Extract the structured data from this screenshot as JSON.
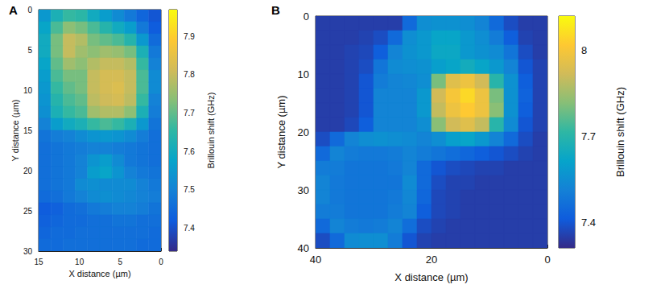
{
  "chart_data": [
    {
      "type": "heatmap",
      "title": "A",
      "x_label": "X distance (µm)",
      "y_label": "Y distance (µm)",
      "xlim": [
        15,
        0
      ],
      "xticks": [
        15,
        10,
        5,
        0
      ],
      "ylim": [
        30,
        0
      ],
      "yticks": [
        0,
        5,
        10,
        15,
        20,
        25,
        30
      ],
      "x": [
        14.25,
        12.75,
        11.25,
        9.75,
        8.25,
        6.75,
        5.25,
        3.75,
        2.25,
        0.75
      ],
      "y": [
        0.75,
        2.25,
        3.75,
        5.25,
        6.75,
        8.25,
        9.75,
        11.25,
        12.75,
        14.25,
        15.75,
        17.25,
        18.75,
        20.25,
        21.75,
        23.25,
        24.75,
        26.25,
        27.75,
        29.25
      ],
      "values": [
        [
          7.55,
          7.62,
          7.66,
          7.65,
          7.6,
          7.56,
          7.52,
          7.48,
          7.44,
          7.41
        ],
        [
          7.58,
          7.68,
          7.74,
          7.72,
          7.68,
          7.64,
          7.6,
          7.56,
          7.48,
          7.42
        ],
        [
          7.6,
          7.72,
          7.8,
          7.78,
          7.72,
          7.7,
          7.68,
          7.64,
          7.55,
          7.45
        ],
        [
          7.6,
          7.72,
          7.8,
          7.76,
          7.74,
          7.76,
          7.75,
          7.72,
          7.62,
          7.48
        ],
        [
          7.58,
          7.7,
          7.76,
          7.74,
          7.78,
          7.8,
          7.8,
          7.78,
          7.66,
          7.5
        ],
        [
          7.56,
          7.68,
          7.72,
          7.72,
          7.8,
          7.82,
          7.82,
          7.8,
          7.68,
          7.52
        ],
        [
          7.55,
          7.66,
          7.7,
          7.72,
          7.8,
          7.82,
          7.83,
          7.8,
          7.68,
          7.52
        ],
        [
          7.54,
          7.64,
          7.68,
          7.7,
          7.79,
          7.81,
          7.82,
          7.79,
          7.66,
          7.5
        ],
        [
          7.53,
          7.62,
          7.66,
          7.68,
          7.76,
          7.78,
          7.78,
          7.74,
          7.62,
          7.49
        ],
        [
          7.5,
          7.56,
          7.6,
          7.62,
          7.66,
          7.68,
          7.66,
          7.62,
          7.55,
          7.47
        ],
        [
          7.47,
          7.49,
          7.5,
          7.52,
          7.54,
          7.55,
          7.54,
          7.52,
          7.49,
          7.46
        ],
        [
          7.46,
          7.47,
          7.48,
          7.49,
          7.5,
          7.5,
          7.49,
          7.48,
          7.47,
          7.46
        ],
        [
          7.46,
          7.47,
          7.48,
          7.5,
          7.54,
          7.56,
          7.52,
          7.48,
          7.47,
          7.46
        ],
        [
          7.46,
          7.47,
          7.48,
          7.5,
          7.56,
          7.58,
          7.54,
          7.5,
          7.48,
          7.47
        ],
        [
          7.46,
          7.47,
          7.48,
          7.52,
          7.53,
          7.52,
          7.52,
          7.52,
          7.5,
          7.48
        ],
        [
          7.45,
          7.46,
          7.48,
          7.5,
          7.52,
          7.53,
          7.52,
          7.51,
          7.5,
          7.49
        ],
        [
          7.42,
          7.43,
          7.45,
          7.46,
          7.48,
          7.49,
          7.5,
          7.5,
          7.49,
          7.47
        ],
        [
          7.43,
          7.44,
          7.45,
          7.45,
          7.46,
          7.46,
          7.47,
          7.47,
          7.46,
          7.46
        ],
        [
          7.44,
          7.45,
          7.45,
          7.46,
          7.46,
          7.46,
          7.46,
          7.46,
          7.46,
          7.45
        ],
        [
          7.45,
          7.45,
          7.46,
          7.46,
          7.46,
          7.46,
          7.46,
          7.46,
          7.45,
          7.45
        ]
      ],
      "colorbar": {
        "label": "Brillouin shift (GHz)",
        "range": [
          7.34,
          7.97
        ],
        "ticks": [
          7.4,
          7.5,
          7.6,
          7.7,
          7.8,
          7.9
        ]
      }
    },
    {
      "type": "heatmap",
      "title": "B",
      "x_label": "X distance (µm)",
      "y_label": "Y distance (µm)",
      "xlim": [
        40,
        0
      ],
      "xticks": [
        40,
        20,
        0
      ],
      "ylim": [
        40,
        0
      ],
      "yticks": [
        0,
        10,
        20,
        30,
        40
      ],
      "x": [
        38.75,
        36.25,
        33.75,
        31.25,
        28.75,
        26.25,
        23.75,
        21.25,
        18.75,
        16.25,
        13.75,
        11.25,
        8.75,
        6.25,
        3.75,
        1.25
      ],
      "y": [
        1.25,
        3.75,
        6.25,
        8.75,
        11.25,
        13.75,
        16.25,
        18.75,
        21.25,
        23.75,
        26.25,
        28.75,
        31.25,
        33.75,
        36.25,
        38.75
      ],
      "values": [
        [
          7.35,
          7.35,
          7.35,
          7.35,
          7.35,
          7.35,
          7.45,
          7.55,
          7.56,
          7.56,
          7.55,
          7.52,
          7.45,
          7.38,
          7.35,
          7.35
        ],
        [
          7.35,
          7.35,
          7.35,
          7.36,
          7.38,
          7.45,
          7.55,
          7.58,
          7.62,
          7.62,
          7.58,
          7.55,
          7.5,
          7.42,
          7.36,
          7.35
        ],
        [
          7.35,
          7.35,
          7.36,
          7.37,
          7.42,
          7.52,
          7.56,
          7.58,
          7.63,
          7.63,
          7.58,
          7.56,
          7.54,
          7.48,
          7.38,
          7.35
        ],
        [
          7.35,
          7.35,
          7.36,
          7.38,
          7.48,
          7.54,
          7.55,
          7.56,
          7.6,
          7.62,
          7.65,
          7.62,
          7.58,
          7.52,
          7.4,
          7.36
        ],
        [
          7.35,
          7.35,
          7.36,
          7.4,
          7.5,
          7.52,
          7.53,
          7.55,
          7.8,
          7.95,
          7.98,
          7.92,
          7.7,
          7.56,
          7.42,
          7.36
        ],
        [
          7.35,
          7.35,
          7.36,
          7.4,
          7.52,
          7.52,
          7.52,
          7.58,
          7.92,
          8.0,
          8.05,
          7.98,
          7.8,
          7.56,
          7.43,
          7.36
        ],
        [
          7.35,
          7.35,
          7.36,
          7.4,
          7.52,
          7.52,
          7.52,
          7.58,
          7.9,
          7.98,
          8.02,
          7.98,
          7.82,
          7.56,
          7.42,
          7.36
        ],
        [
          7.35,
          7.35,
          7.37,
          7.42,
          7.52,
          7.52,
          7.52,
          7.55,
          7.82,
          7.92,
          7.95,
          7.9,
          7.7,
          7.54,
          7.4,
          7.36
        ],
        [
          7.38,
          7.45,
          7.52,
          7.55,
          7.56,
          7.55,
          7.54,
          7.52,
          7.55,
          7.6,
          7.62,
          7.58,
          7.52,
          7.45,
          7.38,
          7.35
        ],
        [
          7.45,
          7.52,
          7.5,
          7.49,
          7.49,
          7.5,
          7.52,
          7.5,
          7.48,
          7.46,
          7.44,
          7.42,
          7.4,
          7.38,
          7.36,
          7.35
        ],
        [
          7.5,
          7.5,
          7.48,
          7.48,
          7.48,
          7.49,
          7.52,
          7.45,
          7.4,
          7.38,
          7.37,
          7.36,
          7.36,
          7.35,
          7.35,
          7.35
        ],
        [
          7.52,
          7.49,
          7.48,
          7.48,
          7.48,
          7.48,
          7.54,
          7.45,
          7.38,
          7.36,
          7.36,
          7.35,
          7.35,
          7.35,
          7.35,
          7.35
        ],
        [
          7.52,
          7.49,
          7.48,
          7.48,
          7.48,
          7.49,
          7.53,
          7.44,
          7.37,
          7.36,
          7.35,
          7.35,
          7.35,
          7.35,
          7.35,
          7.35
        ],
        [
          7.5,
          7.5,
          7.48,
          7.48,
          7.48,
          7.5,
          7.52,
          7.42,
          7.37,
          7.36,
          7.35,
          7.35,
          7.35,
          7.35,
          7.35,
          7.35
        ],
        [
          7.45,
          7.52,
          7.5,
          7.49,
          7.5,
          7.52,
          7.46,
          7.38,
          7.36,
          7.35,
          7.35,
          7.35,
          7.35,
          7.35,
          7.35,
          7.35
        ],
        [
          7.38,
          7.45,
          7.54,
          7.55,
          7.55,
          7.5,
          7.4,
          7.36,
          7.35,
          7.35,
          7.35,
          7.35,
          7.35,
          7.35,
          7.35,
          7.35
        ]
      ],
      "colorbar": {
        "label": "Brillouin shift (GHz)",
        "range": [
          7.31,
          8.12
        ],
        "ticks": [
          7.4,
          7.7,
          8
        ]
      }
    }
  ]
}
